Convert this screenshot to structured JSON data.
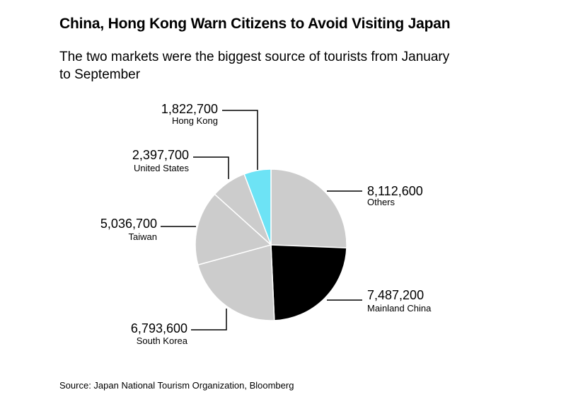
{
  "header": {
    "title": "China, Hong Kong Warn Citizens to Avoid Visiting Japan",
    "subtitle": "The two markets were the biggest source of tourists from January to September"
  },
  "footer": {
    "source": "Source: Japan National Tourism Organization, Bloomberg"
  },
  "colors": {
    "others": "#cccccc",
    "mainland_china": "#000000",
    "default_slice": "#cccccc",
    "hong_kong": "#6de3f5",
    "slice_border": "#ffffff",
    "leader": "#000000"
  },
  "chart_data": {
    "type": "pie",
    "start": "12 o'clock, clockwise",
    "slices": [
      {
        "label": "Others",
        "value": 8112600,
        "value_text": "8,112,600",
        "color": "#cccccc"
      },
      {
        "label": "Mainland China",
        "value": 7487200,
        "value_text": "7,487,200",
        "color": "#000000"
      },
      {
        "label": "South Korea",
        "value": 6793600,
        "value_text": "6,793,600",
        "color": "#cccccc"
      },
      {
        "label": "Taiwan",
        "value": 5036700,
        "value_text": "5,036,700",
        "color": "#cccccc"
      },
      {
        "label": "United States",
        "value": 2397700,
        "value_text": "2,397,700",
        "color": "#cccccc"
      },
      {
        "label": "Hong Kong",
        "value": 1822700,
        "value_text": "1,822,700",
        "color": "#6de3f5"
      }
    ]
  }
}
